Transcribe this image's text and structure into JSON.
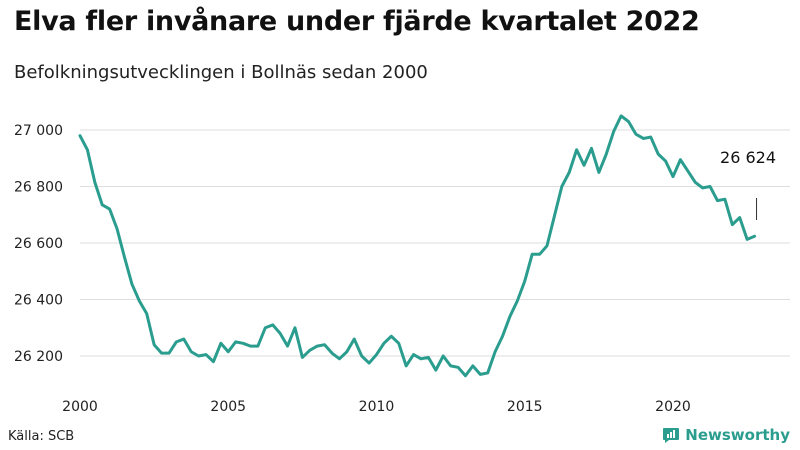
{
  "title": "Elva fler invånare under fjärde kvartalet 2022",
  "subtitle": "Befolkningsutvecklingen i Bollnäs sedan 2000",
  "source": "Källa: SCB",
  "brand": {
    "name": "Newsworthy",
    "icon": "newsworthy-logo-icon",
    "color": "#2a9d8f"
  },
  "chart_data": {
    "type": "line",
    "title": "Elva fler invånare under fjärde kvartalet 2022",
    "subtitle": "Befolkningsutvecklingen i Bollnäs sedan 2000",
    "xlabel": "",
    "ylabel": "",
    "xlim": [
      2000,
      2023
    ],
    "ylim": [
      26100,
      27100
    ],
    "grid": true,
    "line_color": "#2a9d8f",
    "yticks": [
      {
        "value": 26200,
        "label": "26 200"
      },
      {
        "value": 26400,
        "label": "26 400"
      },
      {
        "value": 26600,
        "label": "26 600"
      },
      {
        "value": 26800,
        "label": "26 800"
      },
      {
        "value": 27000,
        "label": "27 000"
      }
    ],
    "xticks": [
      {
        "value": 2000,
        "label": "2000"
      },
      {
        "value": 2005,
        "label": "2005"
      },
      {
        "value": 2010,
        "label": "2010"
      },
      {
        "value": 2015,
        "label": "2015"
      },
      {
        "value": 2020,
        "label": "2020"
      }
    ],
    "last_value_label": "26 624",
    "series": [
      {
        "x": [
          2000.0,
          2000.25,
          2000.5,
          2000.75,
          2001.0,
          2001.25,
          2001.5,
          2001.75,
          2002.0,
          2002.25,
          2002.5,
          2002.75,
          2003.0,
          2003.25,
          2003.5,
          2003.75,
          2004.0,
          2004.25,
          2004.5,
          2004.75,
          2005.0,
          2005.25,
          2005.5,
          2005.75,
          2006.0,
          2006.25,
          2006.5,
          2006.75,
          2007.0,
          2007.25,
          2007.5,
          2007.75,
          2008.0,
          2008.25,
          2008.5,
          2008.75,
          2009.0,
          2009.25,
          2009.5,
          2009.75,
          2010.0,
          2010.25,
          2010.5,
          2010.75,
          2011.0,
          2011.25,
          2011.5,
          2011.75,
          2012.0,
          2012.25,
          2012.5,
          2012.75,
          2013.0,
          2013.25,
          2013.5,
          2013.75,
          2014.0,
          2014.25,
          2014.5,
          2014.75,
          2015.0,
          2015.25,
          2015.5,
          2015.75,
          2016.0,
          2016.25,
          2016.5,
          2016.75,
          2017.0,
          2017.25,
          2017.5,
          2017.75,
          2018.0,
          2018.25,
          2018.5,
          2018.75,
          2019.0,
          2019.25,
          2019.5,
          2019.75,
          2020.0,
          2020.25,
          2020.5,
          2020.75,
          2021.0,
          2021.25,
          2021.5,
          2021.75,
          2022.0,
          2022.25,
          2022.5,
          2022.75
        ],
        "y": [
          26980,
          26930,
          26815,
          26735,
          26720,
          26650,
          26550,
          26455,
          26395,
          26350,
          26240,
          26210,
          26210,
          26250,
          26260,
          26215,
          26200,
          26205,
          26180,
          26245,
          26215,
          26250,
          26245,
          26235,
          26235,
          26300,
          26310,
          26280,
          26235,
          26300,
          26195,
          26220,
          26235,
          26240,
          26210,
          26190,
          26215,
          26260,
          26200,
          26175,
          26205,
          26245,
          26270,
          26245,
          26165,
          26205,
          26190,
          26195,
          26150,
          26200,
          26165,
          26160,
          26130,
          26165,
          26135,
          26140,
          26215,
          26270,
          26340,
          26395,
          26465,
          26560,
          26560,
          26590,
          26695,
          26800,
          26850,
          26930,
          26875,
          26935,
          26850,
          26915,
          26995,
          27050,
          27030,
          26985,
          26970,
          26975,
          26915,
          26890,
          26835,
          26895,
          26855,
          26815,
          26795,
          26800,
          26750,
          26755,
          26665,
          26690,
          26613,
          26624
        ]
      }
    ]
  }
}
